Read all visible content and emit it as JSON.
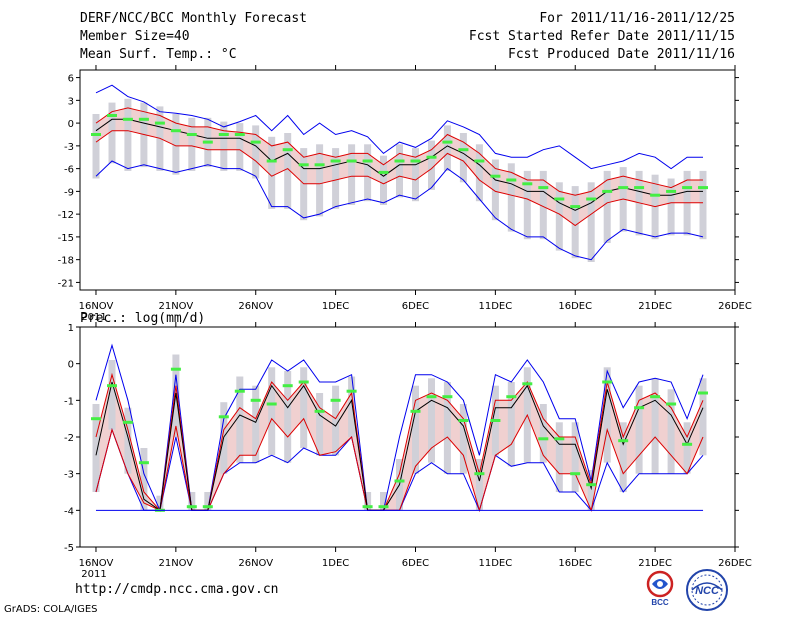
{
  "header": {
    "title": "DERF/NCC/BCC Monthly Forecast",
    "member": "Member Size=40",
    "variable": "Mean Surf. Temp.: °C",
    "period": "For 2011/11/16-2011/12/25",
    "started": "Fcst Started Refer Date 2011/11/15",
    "produced": "Fcst Produced Date 2011/11/16"
  },
  "footer": {
    "url": "http://cmdp.ncc.cma.gov.cn",
    "grads": "GrADS: COLA/IGES"
  },
  "logos": {
    "bcc": "BCC",
    "ncc": "NCC"
  },
  "colors": {
    "envelope": "#0000ee",
    "quartile": "#dd0000",
    "mean": "#000000",
    "box": "#d0d0d8",
    "marker": "#44ee44",
    "shade": "#f0d0d0",
    "axis": "#000000"
  },
  "chart_data": [
    {
      "type": "line",
      "title": "Mean Surf. Temp.: °C",
      "xlabel": "",
      "ylabel": "°C",
      "ylim": [
        -22,
        7
      ],
      "yticks": [
        6,
        3,
        0,
        -3,
        -6,
        -9,
        -12,
        -15,
        -18,
        -21
      ],
      "ytick_labels": [
        "6",
        "3",
        "0",
        "-3",
        "-6",
        "-9",
        "-12",
        "-15",
        "-18",
        "-21"
      ],
      "xticks": [
        0,
        5,
        10,
        15,
        20,
        25,
        30,
        35,
        40
      ],
      "xtick_labels": [
        "16NOV",
        "21NOV",
        "26NOV",
        "1DEC",
        "6DEC",
        "11DEC",
        "16DEC",
        "21DEC",
        "26DEC"
      ],
      "year_label": "2011",
      "days": 39,
      "series": [
        {
          "name": "max",
          "values": [
            4,
            5,
            3.5,
            2.8,
            1.5,
            1.3,
            1,
            0.5,
            -0.5,
            0.2,
            1,
            -1,
            1,
            -1.5,
            0,
            -1.5,
            -1,
            -1.8,
            -4,
            -2.5,
            -3.2,
            -2,
            0.3,
            -0.5,
            -1.5,
            -4,
            -4.5,
            -4.5,
            -3.5,
            -3,
            -4.5,
            -6,
            -5.5,
            -5,
            -4,
            -4.5,
            -6,
            -4.5,
            -4.5
          ]
        },
        {
          "name": "q75",
          "values": [
            0,
            1.5,
            2,
            1.5,
            1,
            0,
            -0.5,
            -0.5,
            -1,
            -1.2,
            -1.5,
            -3,
            -2.5,
            -4.5,
            -4,
            -4.5,
            -4,
            -4,
            -5.5,
            -4,
            -4.5,
            -3.5,
            -1.5,
            -2.5,
            -4,
            -6,
            -6.5,
            -7.5,
            -7.5,
            -9,
            -9.5,
            -9,
            -7.5,
            -7,
            -7.5,
            -8,
            -8.5,
            -7.5,
            -7.5
          ]
        },
        {
          "name": "mean",
          "values": [
            -1,
            0.5,
            0.5,
            0,
            -0.5,
            -1,
            -1.5,
            -2,
            -2,
            -2,
            -3,
            -5,
            -4,
            -6,
            -6,
            -5.5,
            -5,
            -5.5,
            -7,
            -5.5,
            -5.5,
            -4.5,
            -3,
            -4,
            -5.5,
            -7.5,
            -8,
            -9,
            -9,
            -10.5,
            -11.5,
            -10.5,
            -9,
            -8.5,
            -9,
            -9.5,
            -9.5,
            -9,
            -9
          ]
        },
        {
          "name": "q25",
          "values": [
            -2.5,
            -1,
            -1,
            -1.5,
            -2,
            -3,
            -3,
            -3.5,
            -3.5,
            -3.5,
            -5,
            -7,
            -6,
            -8,
            -8,
            -7.5,
            -7,
            -7,
            -8,
            -7,
            -7.5,
            -6,
            -4,
            -5,
            -7.5,
            -9,
            -9.5,
            -10,
            -11,
            -12,
            -13.5,
            -12,
            -10.5,
            -10,
            -10.5,
            -11,
            -10.5,
            -10.5,
            -10.5
          ]
        },
        {
          "name": "min",
          "values": [
            -7,
            -5,
            -6,
            -5.5,
            -6,
            -6.5,
            -6,
            -5.5,
            -6,
            -6,
            -7,
            -11,
            -11,
            -12.5,
            -12,
            -11,
            -10.5,
            -10,
            -10.5,
            -9.5,
            -10,
            -8.5,
            -6,
            -7.5,
            -10,
            -12.5,
            -14,
            -15,
            -15,
            -16.5,
            -17.5,
            -18,
            -15.5,
            -14,
            -14.5,
            -15,
            -14.5,
            -14.5,
            -15
          ]
        },
        {
          "name": "best",
          "values": [
            -1.5,
            1,
            0.5,
            0.5,
            0,
            -1,
            -1.5,
            -2.5,
            -1.5,
            -1.5,
            -2.5,
            -5,
            -3.5,
            -5.5,
            -5.5,
            -5,
            -5,
            -5,
            -6.5,
            -5,
            -5,
            -4.5,
            -2.5,
            -3.5,
            -5,
            -7,
            -7.5,
            -8,
            -8.5,
            -10,
            -11,
            -10,
            -9,
            -8.5,
            -8.5,
            -9.5,
            -9,
            -8.5,
            -8.5
          ]
        }
      ]
    },
    {
      "type": "line",
      "title": "Prec.: log(mm/d)",
      "xlabel": "",
      "ylabel": "log(mm/d)",
      "ylim": [
        -5,
        1
      ],
      "yticks": [
        1,
        0,
        -1,
        -2,
        -3,
        -4,
        -5
      ],
      "ytick_labels": [
        "1",
        "0",
        "-1",
        "-2",
        "-3",
        "-4",
        "-5"
      ],
      "xticks": [
        0,
        5,
        10,
        15,
        20,
        25,
        30,
        35,
        40
      ],
      "xtick_labels": [
        "16NOV",
        "21NOV",
        "26NOV",
        "1DEC",
        "6DEC",
        "11DEC",
        "16DEC",
        "21DEC",
        "26DEC"
      ],
      "year_label": "2011",
      "days": 39,
      "series": [
        {
          "name": "max",
          "values": [
            -1,
            0.5,
            -1,
            -3,
            -4,
            -0.3,
            -4,
            -4,
            -1.5,
            -0.7,
            -0.7,
            0.1,
            -0.2,
            0.1,
            -0.5,
            -0.5,
            -0.3,
            -4,
            -4,
            -2,
            -0.3,
            -0.3,
            -0.5,
            -1,
            -2.5,
            -0.3,
            -0.5,
            0.1,
            -0.5,
            -1.5,
            -1.5,
            -3.2,
            -0.2,
            -1.2,
            -0.5,
            -0.4,
            -0.5,
            -1.5,
            -0.3
          ]
        },
        {
          "name": "q75",
          "values": [
            -2,
            -0.3,
            -1.8,
            -3.5,
            -4,
            -0.6,
            -4,
            -4,
            -1.8,
            -1.2,
            -1.5,
            -0.5,
            -1,
            -0.5,
            -1.2,
            -1.5,
            -0.8,
            -4,
            -4,
            -3,
            -1,
            -0.8,
            -1,
            -1.5,
            -3,
            -1,
            -1,
            -0.5,
            -1.5,
            -2,
            -2,
            -3.3,
            -0.5,
            -2,
            -1,
            -0.8,
            -1.2,
            -2,
            -1
          ]
        },
        {
          "name": "mean",
          "values": [
            -2.5,
            -0.5,
            -2,
            -3.7,
            -4,
            -0.8,
            -4,
            -4,
            -2,
            -1.4,
            -1.6,
            -0.6,
            -1.2,
            -0.6,
            -1.4,
            -1.7,
            -1,
            -4,
            -4,
            -3.3,
            -1.3,
            -1,
            -1.2,
            -1.7,
            -3.2,
            -1.2,
            -1.2,
            -0.6,
            -1.7,
            -2.2,
            -2.2,
            -3.4,
            -0.7,
            -2.2,
            -1.2,
            -1,
            -1.4,
            -2.2,
            -1.2
          ]
        },
        {
          "name": "q25",
          "values": [
            -3.5,
            -1.8,
            -3,
            -3.8,
            -4,
            -1.7,
            -4,
            -4,
            -3,
            -2.5,
            -2.5,
            -1.5,
            -2,
            -1.5,
            -2.5,
            -2.4,
            -2,
            -4,
            -4,
            -4,
            -2.8,
            -2.3,
            -2,
            -2.5,
            -4,
            -2.5,
            -2.2,
            -1.4,
            -2.5,
            -3,
            -3,
            -4,
            -1.8,
            -3,
            -2.5,
            -2,
            -2.5,
            -3,
            -2
          ]
        },
        {
          "name": "min",
          "values": [
            -3.5,
            -1.8,
            -3,
            -4,
            -4,
            -2,
            -4,
            -4,
            -3,
            -2.7,
            -2.7,
            -2.5,
            -2.7,
            -2.3,
            -2.5,
            -2.5,
            -2,
            -4,
            -4,
            -4,
            -3,
            -2.7,
            -3,
            -3,
            -4,
            -2.5,
            -2.8,
            -2.7,
            -2.7,
            -3.5,
            -3.5,
            -4,
            -2.7,
            -3.5,
            -3,
            -3,
            -3,
            -3,
            -2.5
          ]
        },
        {
          "name": "best",
          "values": [
            -1.5,
            -0.6,
            -1.6,
            -2.7,
            -4,
            -0.15,
            -3.9,
            -3.9,
            -1.45,
            -0.75,
            -1,
            -1.1,
            -0.6,
            -0.5,
            -1.3,
            -1,
            -0.75,
            -3.9,
            -3.9,
            -3.2,
            -1.3,
            -0.9,
            -0.9,
            -1.55,
            -3,
            -1.55,
            -0.9,
            -0.55,
            -2.05,
            -2.05,
            -3,
            -3.3,
            -0.5,
            -2.1,
            -1.2,
            -0.9,
            -1.1,
            -2.2,
            -0.8
          ]
        }
      ]
    }
  ]
}
